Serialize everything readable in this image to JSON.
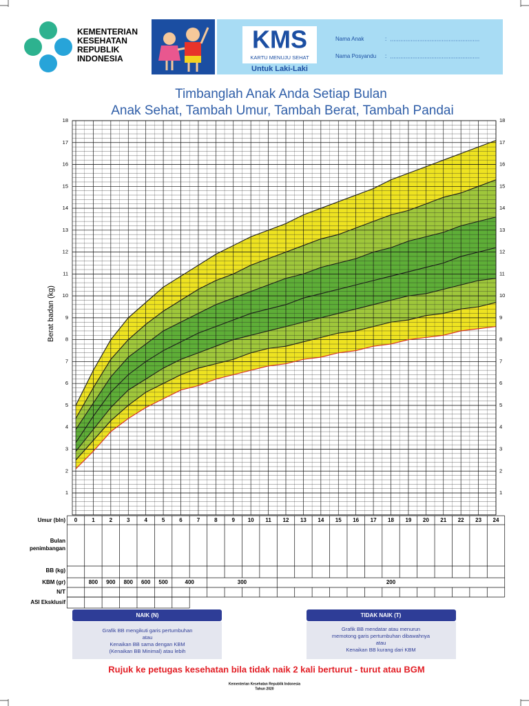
{
  "header": {
    "logo_lines": [
      "KEMENTERIAN",
      "KESEHATAN",
      "REPUBLIK",
      "INDONESIA"
    ],
    "kms": {
      "title": "KMS",
      "subtitle": "KARTU MENUJU SEHAT",
      "gender": "Untuk Laki-Laki"
    },
    "form": [
      {
        "label": "Nama Anak",
        "sep": ":"
      },
      {
        "label": "Nama Posyandu",
        "sep": ":"
      }
    ]
  },
  "chart_data": {
    "type": "line",
    "title": "Timbanglah Anak Anda Setiap Bulan",
    "subtitle": "Anak Sehat, Tambah Umur, Tambah Berat, Tambah Pandai",
    "y_label": "Berat badan (kg)",
    "x": [
      0,
      1,
      2,
      3,
      4,
      5,
      6,
      7,
      8,
      9,
      10,
      11,
      12,
      13,
      14,
      15,
      16,
      17,
      18,
      19,
      20,
      21,
      22,
      23,
      24
    ],
    "xlim": [
      0,
      24
    ],
    "xticks": [
      0,
      1,
      2,
      3,
      4,
      5,
      6,
      7,
      8,
      9,
      10,
      11,
      12,
      13,
      14,
      15,
      16,
      17,
      18,
      19,
      20,
      21,
      22,
      23,
      24
    ],
    "ylim": [
      0,
      18
    ],
    "yticks": [
      1,
      2,
      3,
      4,
      5,
      6,
      7,
      8,
      9,
      10,
      11,
      12,
      13,
      14,
      15,
      16,
      17,
      18
    ],
    "grid": true,
    "ygrid_minor": 0.2,
    "xgrid_minor": 0.5,
    "series": [
      {
        "color": "#1a1a1a",
        "fill": "#eee321",
        "values": [
          5.0,
          6.6,
          8.0,
          9.0,
          9.7,
          10.4,
          10.9,
          11.4,
          11.9,
          12.3,
          12.7,
          13.0,
          13.3,
          13.7,
          14.0,
          14.3,
          14.6,
          14.9,
          15.3,
          15.6,
          15.9,
          16.2,
          16.5,
          16.8,
          17.1
        ]
      },
      {
        "color": "#1a1a1a",
        "fill": "#9fc73b",
        "values": [
          4.4,
          5.8,
          7.1,
          8.0,
          8.7,
          9.3,
          9.8,
          10.3,
          10.7,
          11.0,
          11.4,
          11.7,
          12.0,
          12.3,
          12.6,
          12.8,
          13.1,
          13.4,
          13.7,
          13.9,
          14.2,
          14.5,
          14.7,
          15.0,
          15.3
        ]
      },
      {
        "color": "#1a1a1a",
        "fill": "#5eae37",
        "values": [
          3.9,
          5.1,
          6.3,
          7.2,
          7.8,
          8.4,
          8.8,
          9.2,
          9.6,
          9.9,
          10.2,
          10.5,
          10.8,
          11.0,
          11.3,
          11.5,
          11.7,
          12.0,
          12.2,
          12.5,
          12.7,
          12.9,
          13.2,
          13.4,
          13.6
        ]
      },
      {
        "color": "#1a1a1a",
        "fill": "#5eae37",
        "values": [
          3.3,
          4.5,
          5.6,
          6.4,
          7.0,
          7.5,
          7.9,
          8.3,
          8.6,
          8.9,
          9.2,
          9.4,
          9.6,
          9.9,
          10.1,
          10.3,
          10.5,
          10.7,
          10.9,
          11.1,
          11.3,
          11.5,
          11.8,
          12.0,
          12.2
        ]
      },
      {
        "color": "#1a1a1a",
        "fill": "#9fc73b",
        "values": [
          2.9,
          3.9,
          4.9,
          5.7,
          6.2,
          6.7,
          7.1,
          7.4,
          7.7,
          8.0,
          8.2,
          8.4,
          8.6,
          8.8,
          9.0,
          9.2,
          9.4,
          9.6,
          9.8,
          10.0,
          10.1,
          10.3,
          10.5,
          10.7,
          10.8
        ]
      },
      {
        "color": "#1a1a1a",
        "fill": "#eee321",
        "values": [
          2.5,
          3.4,
          4.3,
          5.0,
          5.6,
          6.0,
          6.4,
          6.7,
          6.9,
          7.1,
          7.4,
          7.6,
          7.7,
          7.9,
          8.1,
          8.3,
          8.4,
          8.6,
          8.8,
          8.9,
          9.1,
          9.2,
          9.4,
          9.5,
          9.7
        ]
      },
      {
        "color": "#d9261c",
        "values": [
          2.1,
          2.9,
          3.8,
          4.4,
          4.9,
          5.3,
          5.7,
          5.9,
          6.2,
          6.4,
          6.6,
          6.8,
          6.9,
          7.1,
          7.2,
          7.4,
          7.5,
          7.7,
          7.8,
          8.0,
          8.1,
          8.2,
          8.4,
          8.5,
          8.6
        ]
      }
    ]
  },
  "table": {
    "row_labels": [
      "Umur (bln)",
      [
        "Bulan",
        "penimbangan"
      ],
      "BB (kg)",
      "KBM (gr)",
      "N/T",
      "ASI Eksklusif"
    ],
    "kbm": [
      800,
      900,
      800,
      600,
      500,
      400,
      300,
      200
    ]
  },
  "legend": {
    "naik": {
      "title": "NAIK (N)",
      "lines": [
        "Grafik BB mengikuti garis pertumbuhan",
        "atau",
        "Kenaikan BB sama dengan KBM",
        "(Kenaikan BB Minimal) atau lebih"
      ]
    },
    "tidak_naik": {
      "title": "TIDAK NAIK (T)",
      "lines": [
        "Grafik BB mendatar atau menurun",
        "memotong garis pertumbuhan dibawahnya",
        "atau",
        "Kenaikan BB kurang dari KBM"
      ]
    }
  },
  "notice": "Rujuk ke petugas kesehatan bila tidak naik 2 kali berturut - turut atau BGM",
  "footer": [
    "Kementerian Kesehatan Republik Indonesia",
    "Tahun 2020"
  ]
}
